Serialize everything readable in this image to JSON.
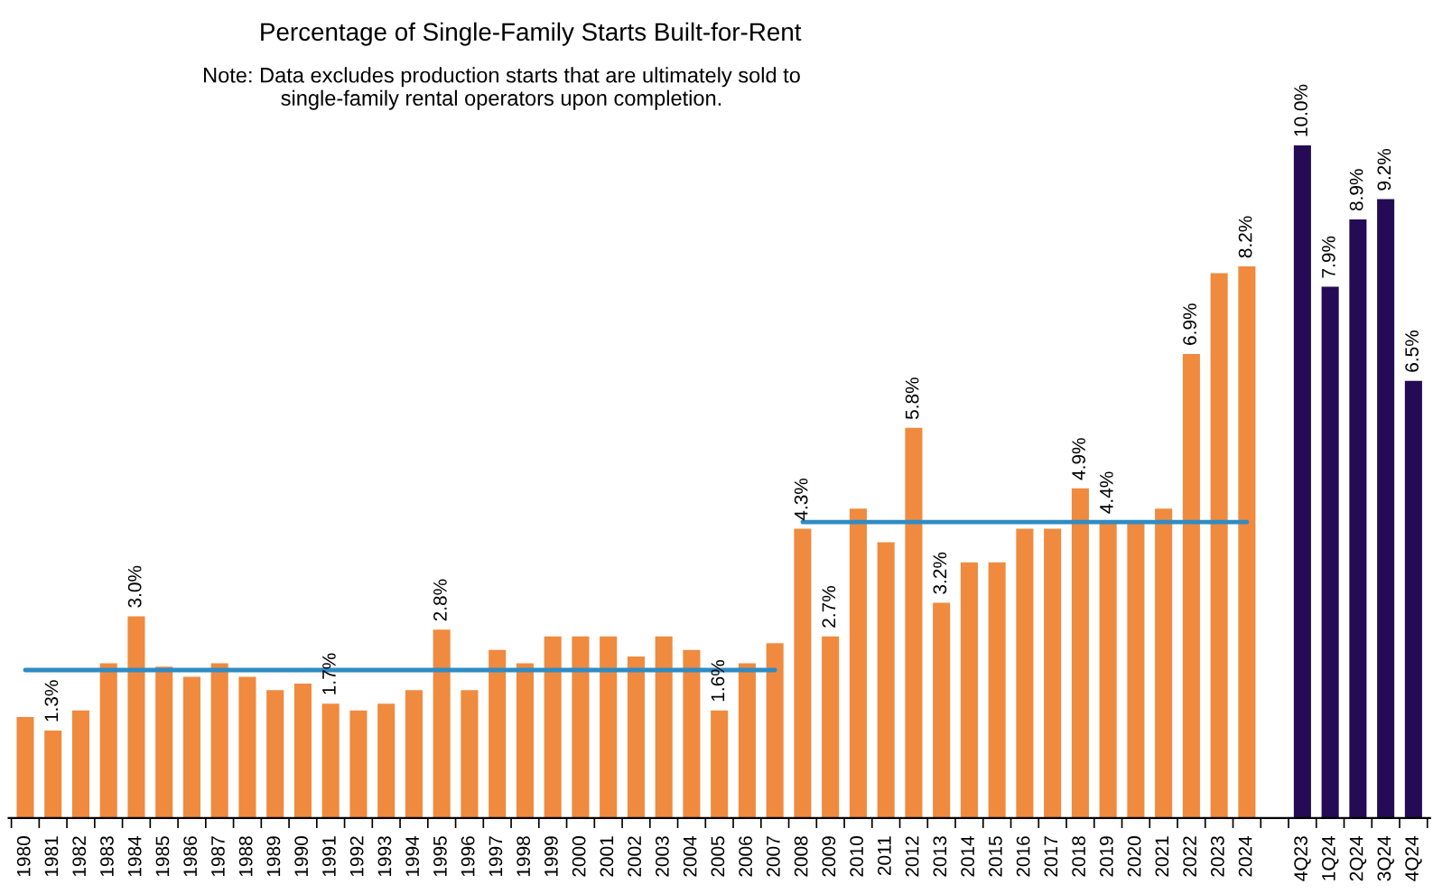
{
  "chart_data": {
    "type": "bar",
    "title": "Percentage of Single-Family Starts Built-for-Rent",
    "annotations": [
      "Note: Data excludes production starts that are ultimately sold to\nsingle-family rental operators upon completion."
    ],
    "categories": [
      "1980",
      "1981",
      "1982",
      "1983",
      "1984",
      "1985",
      "1986",
      "1987",
      "1988",
      "1989",
      "1990",
      "1991",
      "1992",
      "1993",
      "1994",
      "1995",
      "1996",
      "1997",
      "1998",
      "1999",
      "2000",
      "2001",
      "2002",
      "2003",
      "2004",
      "2005",
      "2006",
      "2007",
      "2008",
      "2009",
      "2010",
      "2011",
      "2012",
      "2013",
      "2014",
      "2015",
      "2016",
      "2017",
      "2018",
      "2019",
      "2020",
      "2021",
      "2022",
      "2023",
      "2024",
      null,
      "4Q23",
      "1Q24",
      "2Q24",
      "3Q24",
      "4Q24"
    ],
    "series": [
      {
        "color": "#ef8a3e",
        "values": [
          1.5,
          1.3,
          1.6,
          2.3,
          3.0,
          2.25,
          2.1,
          2.3,
          2.1,
          1.9,
          2.0,
          1.7,
          1.6,
          1.7,
          1.9,
          2.8,
          1.9,
          2.5,
          2.3,
          2.7,
          2.7,
          2.7,
          2.4,
          2.7,
          2.5,
          1.6,
          2.3,
          2.6,
          4.3,
          2.7,
          4.6,
          4.1,
          5.8,
          3.2,
          3.8,
          3.8,
          4.3,
          4.3,
          4.9,
          4.4,
          4.4,
          4.6,
          6.9,
          8.1,
          8.2,
          null,
          null,
          null,
          null,
          null,
          null
        ],
        "value_labels": [
          null,
          "1.3%",
          null,
          null,
          "3.0%",
          null,
          null,
          null,
          null,
          null,
          null,
          "1.7%",
          null,
          null,
          null,
          "2.8%",
          null,
          null,
          null,
          null,
          null,
          null,
          null,
          null,
          null,
          "1.6%",
          null,
          null,
          "4.3%",
          "2.7%",
          null,
          null,
          "5.8%",
          "3.2%",
          null,
          null,
          null,
          null,
          "4.9%",
          "4.4%",
          null,
          null,
          "6.9%",
          null,
          "8.2%",
          null,
          null,
          null,
          null,
          null,
          null
        ]
      },
      {
        "color": "#250b55",
        "values": [
          null,
          null,
          null,
          null,
          null,
          null,
          null,
          null,
          null,
          null,
          null,
          null,
          null,
          null,
          null,
          null,
          null,
          null,
          null,
          null,
          null,
          null,
          null,
          null,
          null,
          null,
          null,
          null,
          null,
          null,
          null,
          null,
          null,
          null,
          null,
          null,
          null,
          null,
          null,
          null,
          null,
          null,
          null,
          null,
          null,
          null,
          10.0,
          7.9,
          8.9,
          9.2,
          6.5
        ],
        "value_labels": [
          null,
          null,
          null,
          null,
          null,
          null,
          null,
          null,
          null,
          null,
          null,
          null,
          null,
          null,
          null,
          null,
          null,
          null,
          null,
          null,
          null,
          null,
          null,
          null,
          null,
          null,
          null,
          null,
          null,
          null,
          null,
          null,
          null,
          null,
          null,
          null,
          null,
          null,
          null,
          null,
          null,
          null,
          null,
          null,
          null,
          null,
          "10.0%",
          "7.9%",
          "8.9%",
          "9.2%",
          "6.5%"
        ]
      },
      {
        "type": "line",
        "color": "#2e8cc4",
        "values": [
          2.2,
          2.2,
          2.2,
          2.2,
          2.2,
          2.2,
          2.2,
          2.2,
          2.2,
          2.2,
          2.2,
          2.2,
          2.2,
          2.2,
          2.2,
          2.2,
          2.2,
          2.2,
          2.2,
          2.2,
          2.2,
          2.2,
          2.2,
          2.2,
          2.2,
          2.2,
          2.2,
          2.2,
          null,
          null,
          null,
          null,
          null,
          null,
          null,
          null,
          null,
          null,
          null,
          null,
          null,
          null,
          null,
          null,
          null,
          null,
          null,
          null,
          null,
          null,
          null
        ]
      },
      {
        "type": "line",
        "color": "#2e8cc4",
        "values": [
          null,
          null,
          null,
          null,
          null,
          null,
          null,
          null,
          null,
          null,
          null,
          null,
          null,
          null,
          null,
          null,
          null,
          null,
          null,
          null,
          null,
          null,
          null,
          null,
          null,
          null,
          null,
          null,
          4.4,
          4.4,
          4.4,
          4.4,
          4.4,
          4.4,
          4.4,
          4.4,
          4.4,
          4.4,
          4.4,
          4.4,
          4.4,
          4.4,
          4.4,
          4.4,
          4.4,
          null,
          null,
          null,
          null,
          null,
          null
        ]
      }
    ],
    "tick_labels": "x",
    "grid": false,
    "legend": false
  }
}
